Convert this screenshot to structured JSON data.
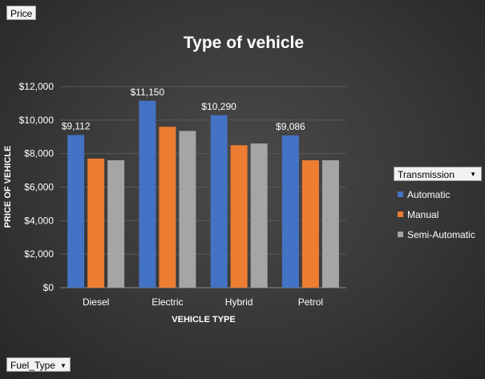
{
  "price_button": "Price",
  "fuel_type_button": "Fuel_Type",
  "legend": {
    "title": "Transmission",
    "items": [
      {
        "label": "Automatic",
        "color": "#4472c4"
      },
      {
        "label": "Manual",
        "color": "#ed7d31"
      },
      {
        "label": "Semi-Automatic",
        "color": "#a5a5a5"
      }
    ]
  },
  "chart_data": {
    "type": "bar",
    "title": "Type of vehicle",
    "xlabel": "VEHICLE TYPE",
    "ylabel": "PRICE OF VEHICLE",
    "categories": [
      "Diesel",
      "Electric",
      "Hybrid",
      "Petrol"
    ],
    "ylim": [
      0,
      12000
    ],
    "yticks": [
      "$0",
      "$2,000",
      "$4,000",
      "$6,000",
      "$8,000",
      "$10,000",
      "$12,000"
    ],
    "grid": true,
    "legend_position": "right",
    "series": [
      {
        "name": "Automatic",
        "color": "#4472c4",
        "values": [
          9112,
          11150,
          10290,
          9086
        ],
        "data_labels": [
          "$9,112",
          "$11,150",
          "$10,290",
          "$9,086"
        ]
      },
      {
        "name": "Manual",
        "color": "#ed7d31",
        "values": [
          7700,
          9600,
          8500,
          7600
        ]
      },
      {
        "name": "Semi-Automatic",
        "color": "#a5a5a5",
        "values": [
          7600,
          9350,
          8600,
          7600
        ]
      }
    ]
  }
}
